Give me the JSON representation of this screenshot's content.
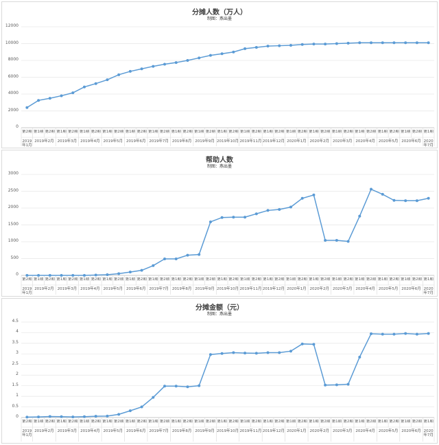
{
  "chart_data": [
    {
      "type": "line",
      "title": "分摊人数（万人）",
      "subtitle": "制图：燕出墨",
      "categories": [
        [
          "第2期",
          "2019年1月"
        ],
        [
          "第1期",
          "2019年2月"
        ],
        [
          "第2期",
          "2019年2月"
        ],
        [
          "第1期",
          "2019年3月"
        ],
        [
          "第2期",
          "2019年3月"
        ],
        [
          "第1期",
          "2019年4月"
        ],
        [
          "第2期",
          "2019年4月"
        ],
        [
          "第1期",
          "2019年5月"
        ],
        [
          "第2期",
          "2019年5月"
        ],
        [
          "第1期",
          "2019年6月"
        ],
        [
          "第2期",
          "2019年6月"
        ],
        [
          "第1期",
          "2019年7月"
        ],
        [
          "第2期",
          "2019年7月"
        ],
        [
          "第1期",
          "2019年8月"
        ],
        [
          "第2期",
          "2019年8月"
        ],
        [
          "第1期",
          "2019年9月"
        ],
        [
          "第2期",
          "2019年9月"
        ],
        [
          "第1期",
          "2019年10月"
        ],
        [
          "第2期",
          "2019年10月"
        ],
        [
          "第1期",
          "2019年11月"
        ],
        [
          "第2期",
          "2019年11月"
        ],
        [
          "第1期",
          "2019年12月"
        ],
        [
          "第2期",
          "2019年12月"
        ],
        [
          "第1期",
          "2020年1月"
        ],
        [
          "第2期",
          "2020年1月"
        ],
        [
          "第1期",
          "2020年2月"
        ],
        [
          "第2期",
          "2020年2月"
        ],
        [
          "第1期",
          "2020年3月"
        ],
        [
          "第2期",
          "2020年3月"
        ],
        [
          "第1期",
          "2020年4月"
        ],
        [
          "第2期",
          "2020年4月"
        ],
        [
          "第1期",
          "2020年5月"
        ],
        [
          "第2期",
          "2020年5月"
        ],
        [
          "第1期",
          "2020年6月"
        ],
        [
          "第2期",
          "2020年6月"
        ],
        [
          "第1期",
          "2020年7月"
        ]
      ],
      "values": [
        2400,
        3250,
        3500,
        3800,
        4150,
        4850,
        5250,
        5700,
        6300,
        6700,
        7000,
        7300,
        7550,
        7750,
        8000,
        8300,
        8600,
        8800,
        9000,
        9400,
        9550,
        9700,
        9750,
        9800,
        9900,
        9950,
        9950,
        10000,
        10050,
        10100,
        10100,
        10100,
        10100,
        10100,
        10100,
        10100
      ],
      "color": "#5b9bd5",
      "ylim": [
        0,
        12000
      ],
      "yticks": [
        0,
        2000,
        4000,
        6000,
        8000,
        10000,
        12000
      ],
      "grid": true
    },
    {
      "type": "line",
      "title": "帮助人数",
      "subtitle": "制图：燕出墨",
      "categories": [
        [
          "第2期",
          "2019年1月"
        ],
        [
          "第1期",
          "2019年2月"
        ],
        [
          "第2期",
          "2019年2月"
        ],
        [
          "第1期",
          "2019年3月"
        ],
        [
          "第2期",
          "2019年3月"
        ],
        [
          "第1期",
          "2019年4月"
        ],
        [
          "第2期",
          "2019年4月"
        ],
        [
          "第1期",
          "2019年5月"
        ],
        [
          "第2期",
          "2019年5月"
        ],
        [
          "第1期",
          "2019年6月"
        ],
        [
          "第2期",
          "2019年6月"
        ],
        [
          "第1期",
          "2019年7月"
        ],
        [
          "第2期",
          "2019年7月"
        ],
        [
          "第1期",
          "2019年8月"
        ],
        [
          "第2期",
          "2019年8月"
        ],
        [
          "第1期",
          "2019年9月"
        ],
        [
          "第2期",
          "2019年9月"
        ],
        [
          "第1期",
          "2019年10月"
        ],
        [
          "第2期",
          "2019年10月"
        ],
        [
          "第1期",
          "2019年11月"
        ],
        [
          "第2期",
          "2019年11月"
        ],
        [
          "第1期",
          "2019年12月"
        ],
        [
          "第2期",
          "2019年12月"
        ],
        [
          "第1期",
          "2020年1月"
        ],
        [
          "第2期",
          "2020年1月"
        ],
        [
          "第1期",
          "2020年2月"
        ],
        [
          "第2期",
          "2020年2月"
        ],
        [
          "第1期",
          "2020年3月"
        ],
        [
          "第2期",
          "2020年3月"
        ],
        [
          "第1期",
          "2020年4月"
        ],
        [
          "第2期",
          "2020年4月"
        ],
        [
          "第1期",
          "2020年5月"
        ],
        [
          "第2期",
          "2020年5月"
        ],
        [
          "第1期",
          "2020年6月"
        ],
        [
          "第2期",
          "2020年6月"
        ],
        [
          "第1期",
          "2020年7月"
        ]
      ],
      "values": [
        0,
        0,
        0,
        0,
        0,
        0,
        10,
        20,
        50,
        100,
        150,
        290,
        490,
        490,
        600,
        620,
        1590,
        1720,
        1730,
        1730,
        1830,
        1930,
        1960,
        2030,
        2290,
        2390,
        1040,
        1040,
        1010,
        1760,
        2560,
        2410,
        2230,
        2220,
        2220,
        2290
      ],
      "color": "#5b9bd5",
      "ylim": [
        0,
        3000
      ],
      "yticks": [
        0,
        500,
        1000,
        1500,
        2000,
        2500,
        3000
      ],
      "grid": true
    },
    {
      "type": "line",
      "title": "分摊金额（元）",
      "subtitle": "制图：燕出墨",
      "categories": [
        [
          "第2期",
          "2019年1月"
        ],
        [
          "第1期",
          "2019年2月"
        ],
        [
          "第2期",
          "2019年2月"
        ],
        [
          "第1期",
          "2019年3月"
        ],
        [
          "第2期",
          "2019年3月"
        ],
        [
          "第1期",
          "2019年4月"
        ],
        [
          "第2期",
          "2019年4月"
        ],
        [
          "第1期",
          "2019年5月"
        ],
        [
          "第2期",
          "2019年5月"
        ],
        [
          "第1期",
          "2019年6月"
        ],
        [
          "第2期",
          "2019年6月"
        ],
        [
          "第1期",
          "2019年7月"
        ],
        [
          "第2期",
          "2019年7月"
        ],
        [
          "第1期",
          "2019年8月"
        ],
        [
          "第2期",
          "2019年8月"
        ],
        [
          "第1期",
          "2019年9月"
        ],
        [
          "第2期",
          "2019年9月"
        ],
        [
          "第1期",
          "2019年10月"
        ],
        [
          "第2期",
          "2019年10月"
        ],
        [
          "第1期",
          "2019年11月"
        ],
        [
          "第2期",
          "2019年11月"
        ],
        [
          "第1期",
          "2019年12月"
        ],
        [
          "第2期",
          "2019年12月"
        ],
        [
          "第1期",
          "2020年1月"
        ],
        [
          "第2期",
          "2020年1月"
        ],
        [
          "第1期",
          "2020年2月"
        ],
        [
          "第2期",
          "2020年2月"
        ],
        [
          "第1期",
          "2020年3月"
        ],
        [
          "第2期",
          "2020年3月"
        ],
        [
          "第1期",
          "2020年4月"
        ],
        [
          "第2期",
          "2020年4月"
        ],
        [
          "第1期",
          "2020年5月"
        ],
        [
          "第2期",
          "2020年5月"
        ],
        [
          "第1期",
          "2020年6月"
        ],
        [
          "第2期",
          "2020年6月"
        ],
        [
          "第1期",
          "2020年7月"
        ]
      ],
      "values": [
        0.02,
        0.03,
        0.05,
        0.04,
        0.03,
        0.04,
        0.06,
        0.07,
        0.15,
        0.32,
        0.5,
        0.95,
        1.48,
        1.48,
        1.45,
        1.5,
        2.97,
        3.02,
        3.06,
        3.04,
        3.03,
        3.06,
        3.06,
        3.13,
        3.47,
        3.45,
        1.53,
        1.54,
        1.57,
        2.85,
        3.95,
        3.93,
        3.93,
        3.96,
        3.93,
        3.96
      ],
      "color": "#5b9bd5",
      "ylim": [
        0,
        4.5
      ],
      "yticks": [
        0,
        0.5,
        1,
        1.5,
        2,
        2.5,
        3,
        3.5,
        4,
        4.5
      ],
      "grid": true
    }
  ]
}
